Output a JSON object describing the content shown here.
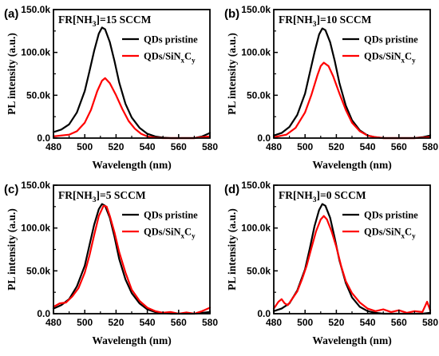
{
  "chart_data": [
    {
      "panel": "(a)",
      "type": "line",
      "annotation": {
        "prefix": "FR[NH",
        "sub": "3",
        "suffix": "]=15 SCCM"
      },
      "xlabel": "Wavelength (nm)",
      "ylabel": "PL intensity (a.u.)",
      "xlim": [
        480,
        580
      ],
      "ylim": [
        0,
        150000
      ],
      "xticks": [
        480,
        500,
        520,
        540,
        560,
        580
      ],
      "yticks": [
        0,
        50000,
        100000,
        150000
      ],
      "yticklabels": [
        "0.0",
        "50.0k",
        "100.0k",
        "150.0k"
      ],
      "legend_position": "top-right",
      "series": [
        {
          "name": "QDs pristine",
          "color": "#000000",
          "x": [
            480,
            485,
            490,
            495,
            500,
            503,
            506,
            509,
            511,
            513,
            516,
            519,
            522,
            526,
            530,
            535,
            540,
            545,
            550,
            555,
            560,
            565,
            570,
            575,
            580
          ],
          "y": [
            7000,
            10000,
            16000,
            30000,
            55000,
            78000,
            102000,
            122000,
            129000,
            127000,
            112000,
            90000,
            65000,
            40000,
            24000,
            12000,
            5000,
            2000,
            500,
            0,
            0,
            0,
            0,
            2000,
            6000
          ]
        },
        {
          "name": "QDs/SiNxCy",
          "color": "#ff0000",
          "x": [
            480,
            490,
            495,
            500,
            504,
            508,
            511,
            513,
            516,
            520,
            524,
            528,
            532,
            536,
            540,
            545,
            550,
            555,
            560,
            565,
            570,
            575,
            580
          ],
          "y": [
            2000,
            4000,
            8000,
            18000,
            33000,
            55000,
            67000,
            70000,
            64000,
            50000,
            34000,
            20000,
            11000,
            5000,
            2000,
            500,
            0,
            0,
            0,
            0,
            0,
            1000,
            2000
          ]
        }
      ]
    },
    {
      "panel": "(b)",
      "type": "line",
      "annotation": {
        "prefix": "FR[NH",
        "sub": "3",
        "suffix": "]=10 SCCM"
      },
      "xlabel": "Wavelength (nm)",
      "ylabel": "PL intensity (a.u.)",
      "xlim": [
        480,
        580
      ],
      "ylim": [
        0,
        150000
      ],
      "xticks": [
        480,
        500,
        520,
        540,
        560,
        580
      ],
      "yticks": [
        0,
        50000,
        100000,
        150000
      ],
      "yticklabels": [
        "0.0",
        "50.0k",
        "100.0k",
        "150.0k"
      ],
      "legend_position": "top-right",
      "series": [
        {
          "name": "QDs pristine",
          "color": "#000000",
          "x": [
            480,
            485,
            490,
            495,
            500,
            503,
            506,
            509,
            511,
            513,
            516,
            519,
            522,
            526,
            530,
            535,
            540,
            545,
            550,
            555,
            560,
            565,
            570,
            575,
            580
          ],
          "y": [
            3000,
            6000,
            13000,
            27000,
            52000,
            76000,
            100000,
            121000,
            128000,
            126000,
            112000,
            90000,
            64000,
            38000,
            21000,
            9000,
            3000,
            1000,
            0,
            0,
            0,
            0,
            0,
            1000,
            3000
          ]
        },
        {
          "name": "QDs/SiNxCy",
          "color": "#ff0000",
          "x": [
            480,
            488,
            494,
            500,
            504,
            508,
            510,
            512,
            515,
            518,
            522,
            526,
            530,
            535,
            540,
            545,
            550,
            555,
            560,
            565,
            570,
            575,
            580
          ],
          "y": [
            1000,
            4000,
            12000,
            30000,
            50000,
            74000,
            84000,
            88000,
            84000,
            72000,
            52000,
            33000,
            18000,
            8000,
            3000,
            1000,
            0,
            0,
            0,
            0,
            0,
            500,
            1000
          ]
        }
      ]
    },
    {
      "panel": "(c)",
      "type": "line",
      "annotation": {
        "prefix": "FR[NH",
        "sub": "3",
        "suffix": "]=5 SCCM"
      },
      "xlabel": "Wavelength (nm)",
      "ylabel": "PL intensity (a.u.)",
      "xlim": [
        480,
        580
      ],
      "ylim": [
        0,
        150000
      ],
      "xticks": [
        480,
        500,
        520,
        540,
        560,
        580
      ],
      "yticks": [
        0,
        50000,
        100000,
        150000
      ],
      "yticklabels": [
        "0.0",
        "50.0k",
        "100.0k",
        "150.0k"
      ],
      "legend_position": "top-right",
      "series": [
        {
          "name": "QDs pristine",
          "color": "#000000",
          "x": [
            480,
            485,
            490,
            495,
            500,
            503,
            506,
            509,
            511,
            513,
            516,
            519,
            522,
            526,
            530,
            535,
            540,
            545,
            550,
            555,
            560,
            565,
            570,
            575,
            580
          ],
          "y": [
            6000,
            10000,
            17000,
            32000,
            56000,
            80000,
            104000,
            122000,
            128000,
            126000,
            112000,
            90000,
            64000,
            40000,
            24000,
            12000,
            5000,
            2000,
            1000,
            0,
            0,
            0,
            0,
            1000,
            2000
          ]
        },
        {
          "name": "QDs/SiNxCy",
          "color": "#ff0000",
          "x": [
            480,
            484,
            488,
            492,
            496,
            500,
            503,
            506,
            509,
            512,
            514,
            516,
            519,
            522,
            526,
            530,
            535,
            540,
            545,
            550,
            555,
            560,
            565,
            570,
            575,
            580
          ],
          "y": [
            8000,
            12000,
            13000,
            20000,
            30000,
            48000,
            68000,
            92000,
            114000,
            126000,
            125000,
            114000,
            95000,
            72000,
            48000,
            28000,
            15000,
            7000,
            3000,
            1000,
            2000,
            0,
            1500,
            0,
            3000,
            7000
          ]
        }
      ]
    },
    {
      "panel": "(d)",
      "type": "line",
      "annotation": {
        "prefix": "FR[NH",
        "sub": "3",
        "suffix": "]=0 SCCM"
      },
      "xlabel": "Wavelength (nm)",
      "ylabel": "PL intensity (a.u.)",
      "xlim": [
        480,
        580
      ],
      "ylim": [
        0,
        150000
      ],
      "xticks": [
        480,
        500,
        520,
        540,
        560,
        580
      ],
      "yticks": [
        0,
        50000,
        100000,
        150000
      ],
      "yticklabels": [
        "0.0",
        "50.0k",
        "100.0k",
        "150.0k"
      ],
      "legend_position": "top-right",
      "series": [
        {
          "name": "QDs pristine",
          "color": "#000000",
          "x": [
            480,
            485,
            490,
            495,
            500,
            503,
            506,
            509,
            511,
            513,
            516,
            519,
            522,
            526,
            530,
            535,
            540,
            545,
            550,
            555,
            560,
            565,
            570,
            575,
            580
          ],
          "y": [
            3000,
            6000,
            12000,
            27000,
            52000,
            76000,
            102000,
            121000,
            128000,
            126000,
            112000,
            88000,
            62000,
            36000,
            19000,
            8000,
            3000,
            1000,
            0,
            0,
            0,
            0,
            0,
            0,
            1000
          ]
        },
        {
          "name": "QDs/SiNxCy",
          "color": "#ff0000",
          "x": [
            480,
            483,
            485,
            487,
            489,
            492,
            495,
            498,
            501,
            504,
            507,
            510,
            512,
            514,
            517,
            520,
            523,
            526,
            530,
            535,
            540,
            545,
            550,
            555,
            560,
            565,
            570,
            575,
            578,
            580
          ],
          "y": [
            6000,
            14000,
            17000,
            12000,
            10000,
            18000,
            26000,
            40000,
            56000,
            76000,
            96000,
            110000,
            114000,
            110000,
            96000,
            78000,
            56000,
            38000,
            24000,
            13000,
            6000,
            3000,
            5000,
            2000,
            4000,
            1000,
            3000,
            2000,
            14000,
            4000
          ]
        }
      ]
    }
  ]
}
